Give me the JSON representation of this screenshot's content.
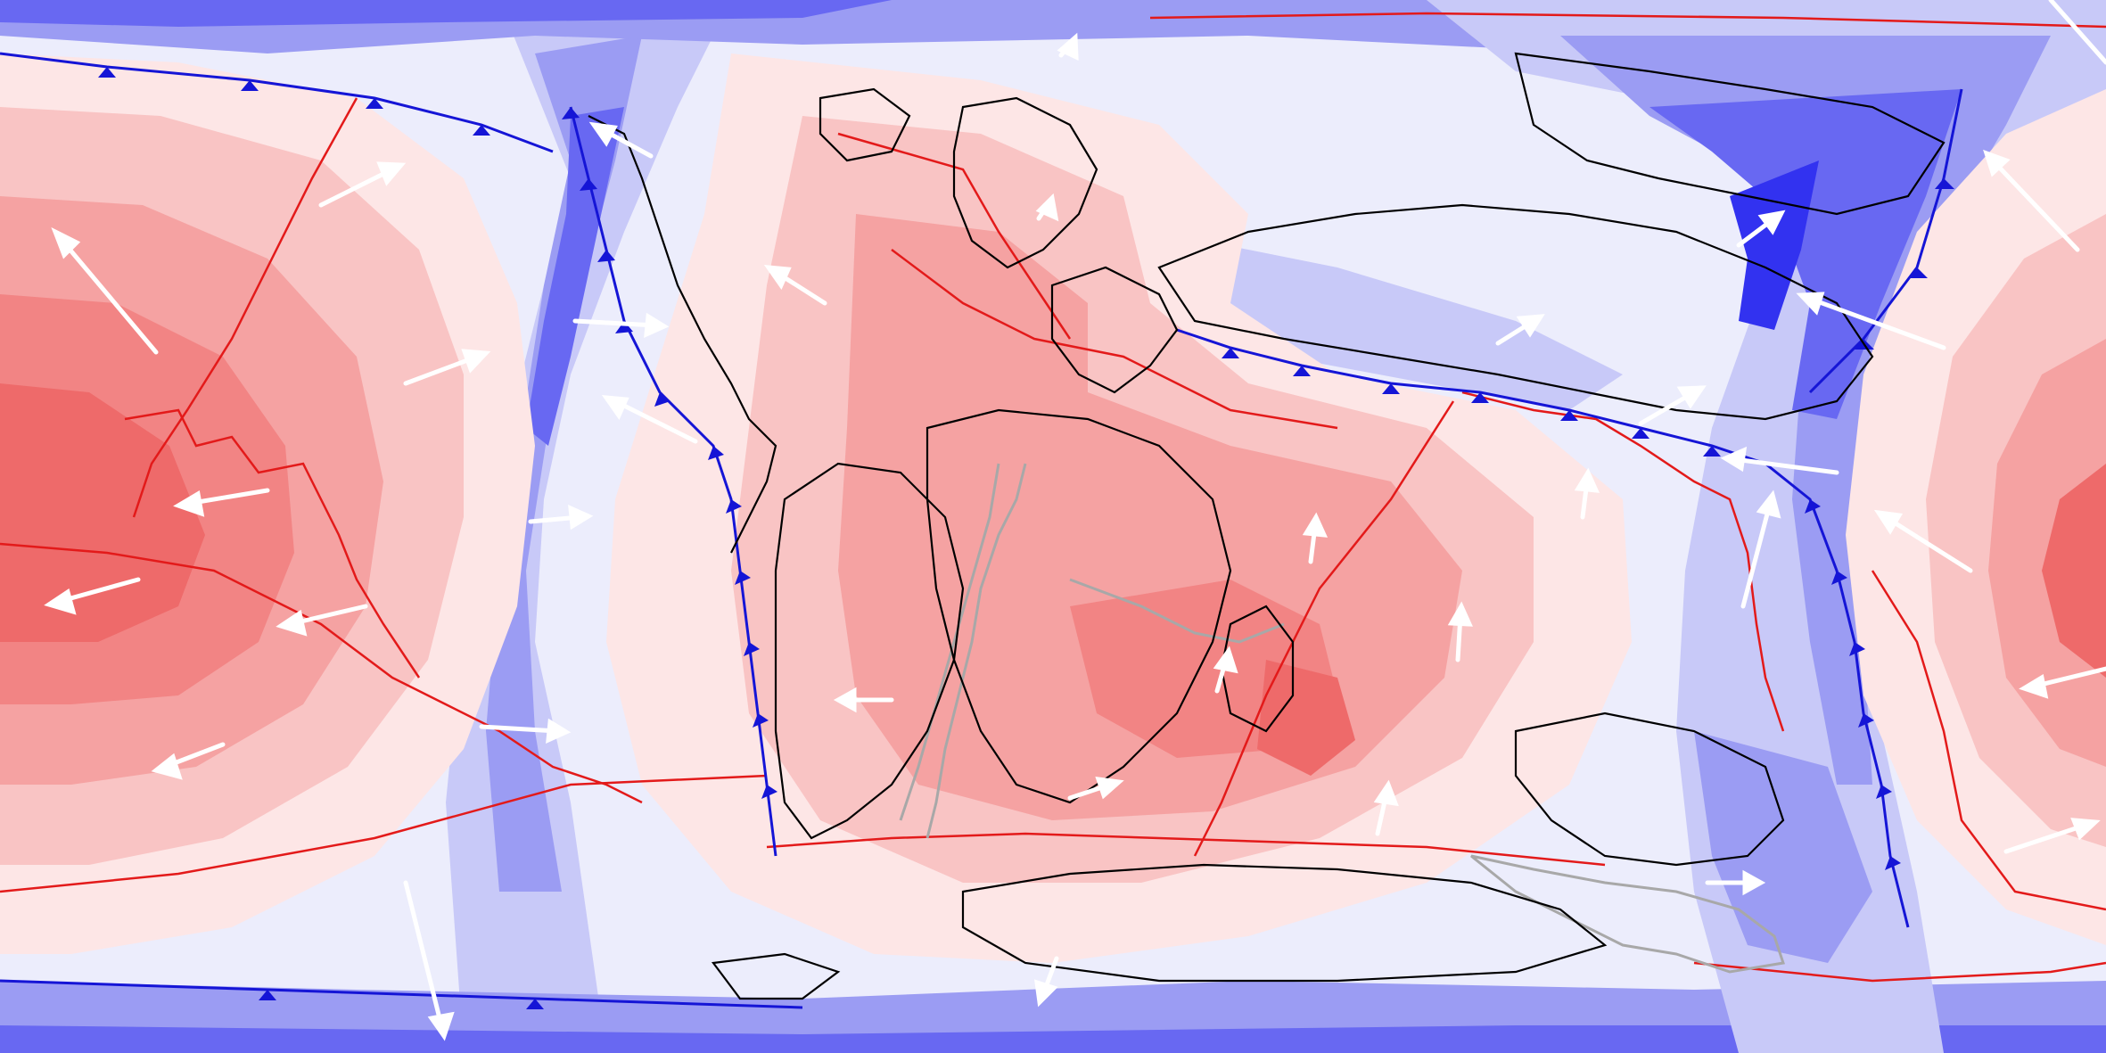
{
  "map": {
    "projection": "equirectangular",
    "field_colors": {
      "background": "#ecedfc",
      "blue_4": "#3232f0",
      "blue_3": "#6868f2",
      "blue_2": "#9b9cf3",
      "blue_1": "#c8c9f8",
      "blue_0": "#e3e4fb",
      "red_0": "#fde6e6",
      "red_1": "#f9c4c4",
      "red_2": "#f5a2a2",
      "red_3": "#f28484",
      "red_4": "#ee6a6a"
    },
    "line_colors": {
      "coastline": "#000000",
      "plate_boundary": "#e31a1a",
      "subduction_zone": "#1515d6",
      "paleo_boundary": "#a8a8a8",
      "velocity_arrow": "#ffffff"
    },
    "icons": {
      "subduction_teeth": "triangle-tooth-icon",
      "velocity": "arrow-icon"
    }
  }
}
